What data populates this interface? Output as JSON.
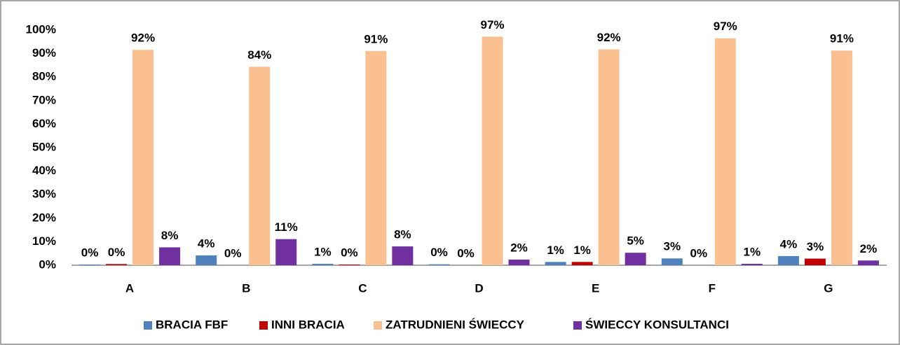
{
  "chart_data": {
    "type": "bar",
    "categories": [
      "A",
      "B",
      "C",
      "D",
      "E",
      "F",
      "G"
    ],
    "series": [
      {
        "name": "BRACIA FBF",
        "color": "#4f81bd",
        "values": [
          0.3,
          4.2,
          0.6,
          0.4,
          1.4,
          2.9,
          3.9
        ],
        "value_labels": [
          "0%",
          "4%",
          "1%",
          "0%",
          "1%",
          "3%",
          "4%"
        ]
      },
      {
        "name": "INNI BRACIA",
        "color": "#c00000",
        "values": [
          0.5,
          0,
          0.3,
          0,
          1.4,
          0,
          2.8
        ],
        "value_labels": [
          "0%",
          "0%",
          "0%",
          "0%",
          "1%",
          "0%",
          "3%"
        ]
      },
      {
        "name": "ZATRUDNIENI ŚWIECCY",
        "color": "#fac090",
        "values": [
          91.6,
          84.4,
          91.1,
          97.2,
          91.8,
          96.5,
          91.3
        ],
        "value_labels": [
          "92%",
          "84%",
          "91%",
          "97%",
          "92%",
          "97%",
          "91%"
        ]
      },
      {
        "name": "ŚWIECCY KONSULTANCI",
        "color": "#7030a0",
        "values": [
          7.6,
          11.1,
          8.0,
          2.4,
          5.3,
          0.6,
          2.0
        ],
        "value_labels": [
          "8%",
          "11%",
          "8%",
          "2%",
          "5%",
          "1%",
          "2%"
        ]
      }
    ],
    "ylim": [
      0,
      100
    ],
    "yticks": [
      {
        "value": 0,
        "label": "0%"
      },
      {
        "value": 10,
        "label": "10%"
      },
      {
        "value": 20,
        "label": "20%"
      },
      {
        "value": 30,
        "label": "30%"
      },
      {
        "value": 40,
        "label": "40%"
      },
      {
        "value": 50,
        "label": "50%"
      },
      {
        "value": 60,
        "label": "60%"
      },
      {
        "value": 70,
        "label": "70%"
      },
      {
        "value": 80,
        "label": "80%"
      },
      {
        "value": 90,
        "label": "90%"
      },
      {
        "value": 100,
        "label": "100%"
      }
    ],
    "grid": false,
    "legend": "bottom"
  }
}
